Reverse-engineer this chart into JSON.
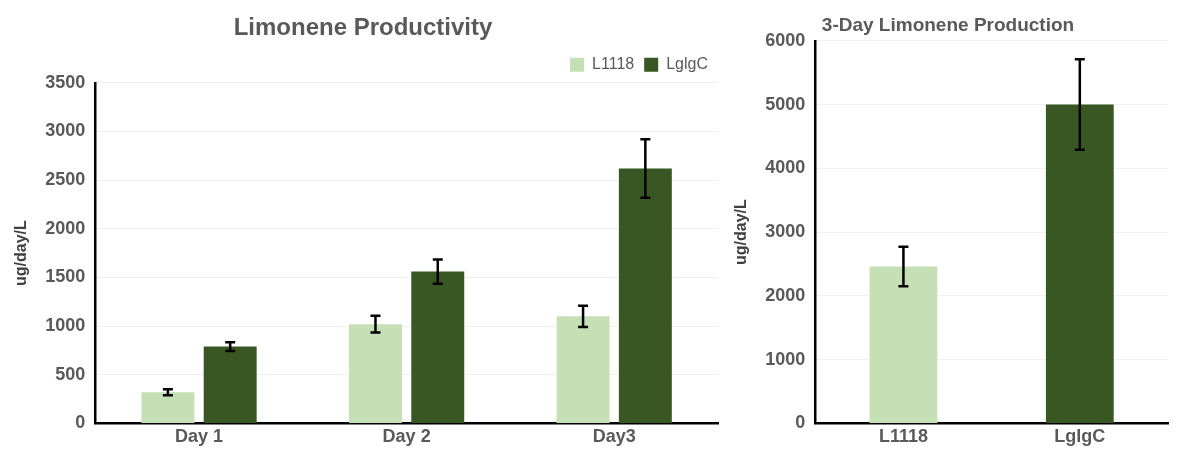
{
  "chart_data": [
    {
      "type": "bar",
      "title": "Limonene Productivity",
      "ylabel": "ug/day/L",
      "categories": [
        "Day 1",
        "Day 2",
        "Day3"
      ],
      "series": [
        {
          "name": "L1118",
          "color": "#c5e0b4",
          "values": [
            320,
            1020,
            1100
          ],
          "errors": [
            30,
            85,
            110
          ]
        },
        {
          "name": "LglgC",
          "color": "#385723",
          "values": [
            790,
            1560,
            2620
          ],
          "errors": [
            45,
            125,
            300
          ]
        }
      ],
      "ylim": [
        0,
        3500
      ],
      "yticks": [
        0,
        500,
        1000,
        1500,
        2000,
        2500,
        3000,
        3500
      ],
      "grid": "y",
      "legend": "top right"
    },
    {
      "type": "bar",
      "title": "3-Day Limonene Production",
      "ylabel": "ug/day/L",
      "categories": [
        "L1118",
        "LglgC"
      ],
      "values": [
        2460,
        5000
      ],
      "colors": [
        "#c5e0b4",
        "#385723"
      ],
      "errors": [
        310,
        710
      ],
      "ylim": [
        0,
        6000
      ],
      "yticks": [
        0,
        1000,
        2000,
        3000,
        4000,
        5000,
        6000
      ],
      "grid": "y"
    }
  ]
}
